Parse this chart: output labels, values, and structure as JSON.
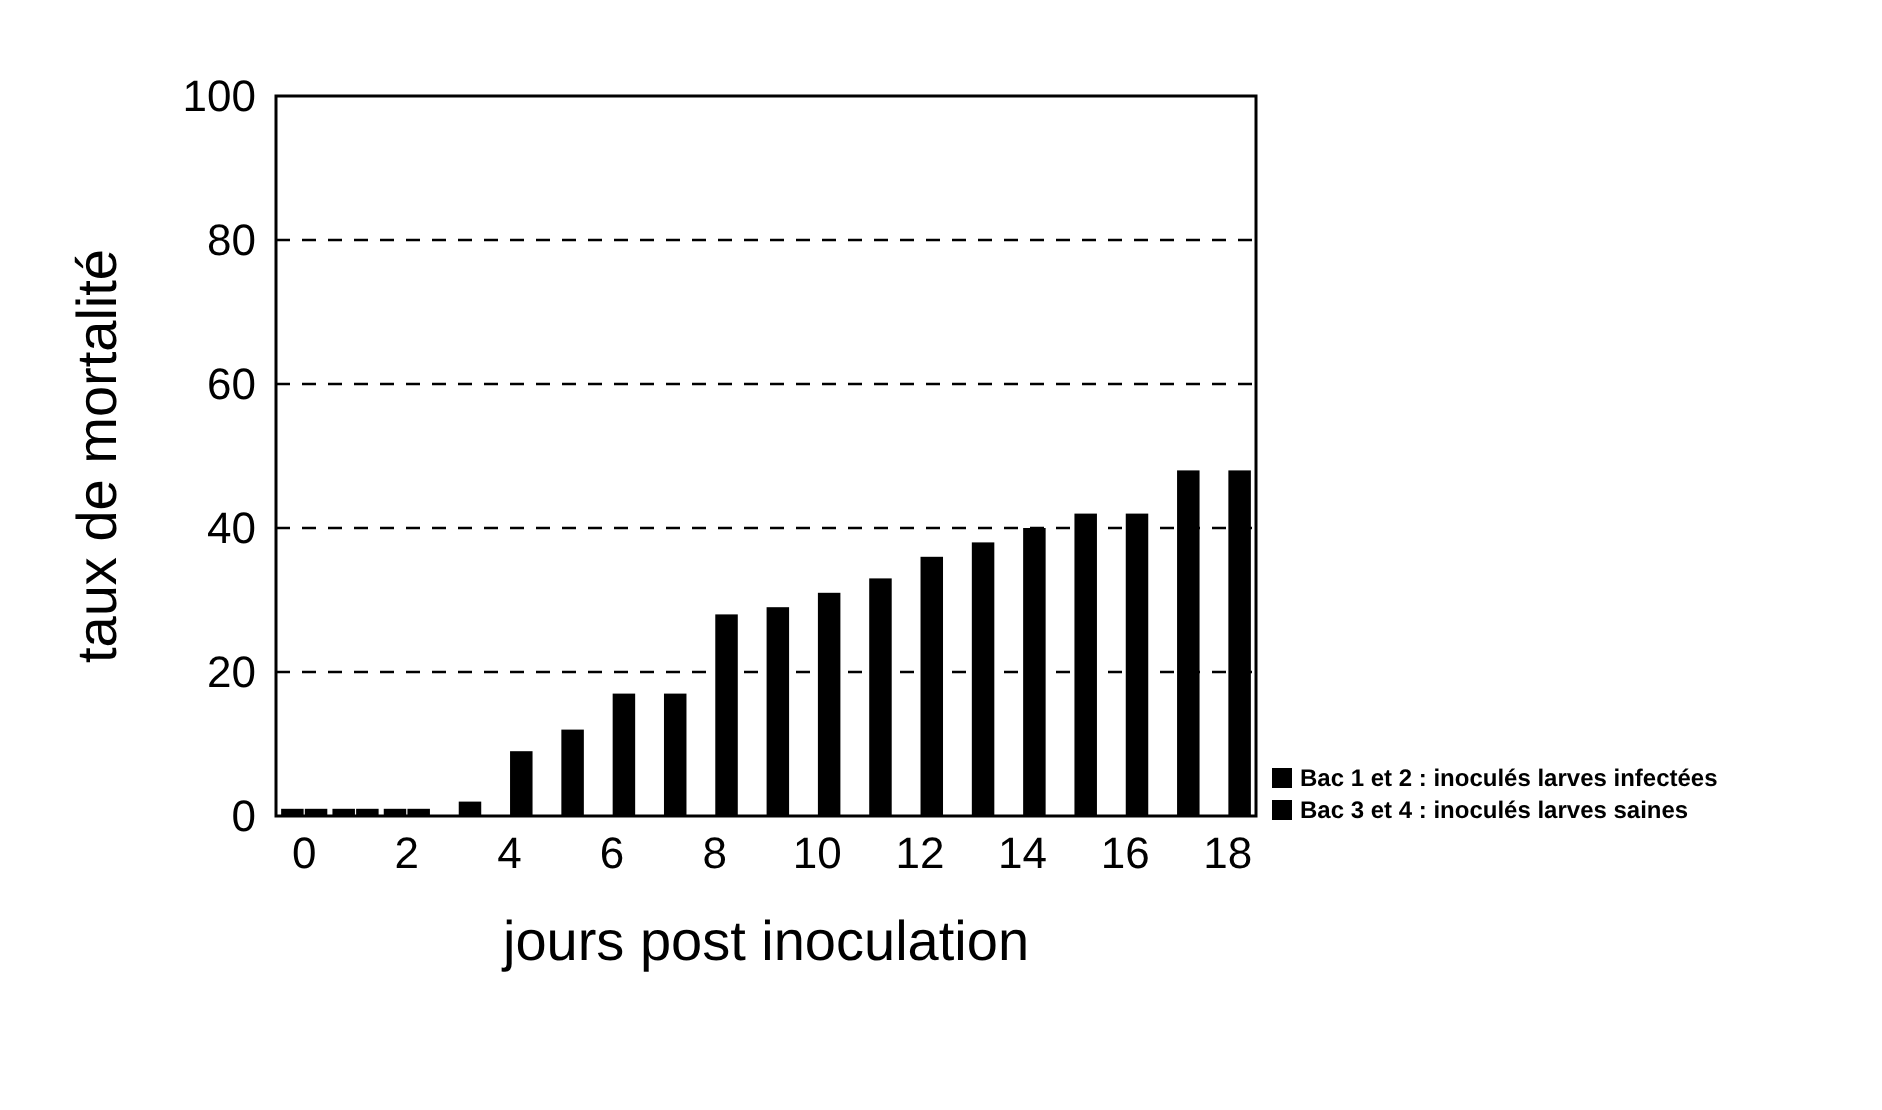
{
  "chart_data": {
    "type": "bar",
    "xlabel": "jours post inoculation",
    "ylabel": "taux de mortalité",
    "categories": [
      "0",
      null,
      "2",
      null,
      "4",
      null,
      "6",
      null,
      "8",
      null,
      "10",
      null,
      "12",
      null,
      "14",
      null,
      "16",
      null,
      "18"
    ],
    "series": [
      {
        "name": "Bac 1 et 2 : inoculés larves infectées",
        "color": "#000000",
        "values": [
          1,
          1,
          1,
          null,
          null,
          null,
          null,
          null,
          null,
          null,
          null,
          null,
          null,
          null,
          null,
          null,
          null,
          null,
          null
        ]
      },
      {
        "name": "Bac 3 et 4 : inoculés larves saines",
        "color": "#000000",
        "values": [
          1,
          1,
          1,
          2,
          9,
          12,
          17,
          17,
          28,
          29,
          31,
          33,
          36,
          38,
          40,
          42,
          42,
          48,
          48
        ]
      }
    ],
    "ylim": [
      0,
      100
    ],
    "yticks": [
      0,
      20,
      40,
      60,
      80,
      100
    ],
    "grid": "y",
    "line_style": "dashed",
    "legend": "bottom right"
  }
}
